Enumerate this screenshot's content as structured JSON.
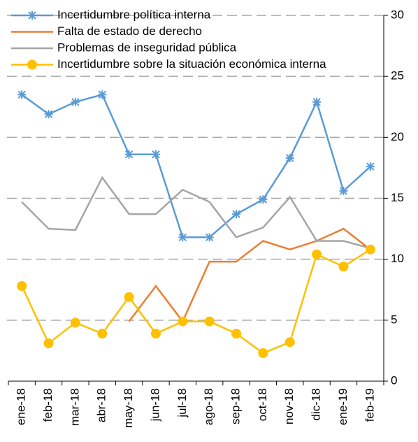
{
  "chart_data": {
    "type": "line",
    "categories": [
      "ene-18",
      "feb-18",
      "mar-18",
      "abr-18",
      "may-18",
      "jun-18",
      "jul-18",
      "ago-18",
      "sep-18",
      "oct-18",
      "nov-18",
      "dic-18",
      "ene-19",
      "feb-19"
    ],
    "series": [
      {
        "name": "Incertidumbre política interna",
        "color": "#5b9bd5",
        "marker": "star",
        "values": [
          23.5,
          21.9,
          22.9,
          23.5,
          18.6,
          18.6,
          11.8,
          11.8,
          13.7,
          14.9,
          18.3,
          22.9,
          15.6,
          17.6
        ]
      },
      {
        "name": "Falta de estado de derecho",
        "color": "#ed7d31",
        "marker": "none",
        "values": [
          null,
          null,
          null,
          null,
          4.9,
          7.8,
          4.9,
          9.8,
          9.8,
          11.5,
          10.8,
          11.5,
          12.5,
          10.8
        ]
      },
      {
        "name": "Problemas de inseguridad pública",
        "color": "#a5a5a5",
        "marker": "none",
        "values": [
          14.7,
          12.5,
          12.4,
          16.7,
          13.7,
          13.7,
          15.7,
          14.7,
          11.8,
          12.6,
          15.1,
          11.5,
          11.5,
          10.9
        ]
      },
      {
        "name": "Incertidumbre sobre la situación económica interna",
        "color": "#ffc000",
        "marker": "circle",
        "values": [
          7.8,
          3.1,
          4.8,
          3.9,
          6.9,
          3.9,
          4.9,
          4.9,
          3.9,
          2.3,
          3.2,
          10.4,
          9.4,
          10.8
        ]
      }
    ],
    "ylim": [
      0,
      30
    ],
    "yticks": [
      0,
      5,
      10,
      15,
      20,
      25,
      30
    ],
    "grid": true,
    "legend": "top-left"
  }
}
